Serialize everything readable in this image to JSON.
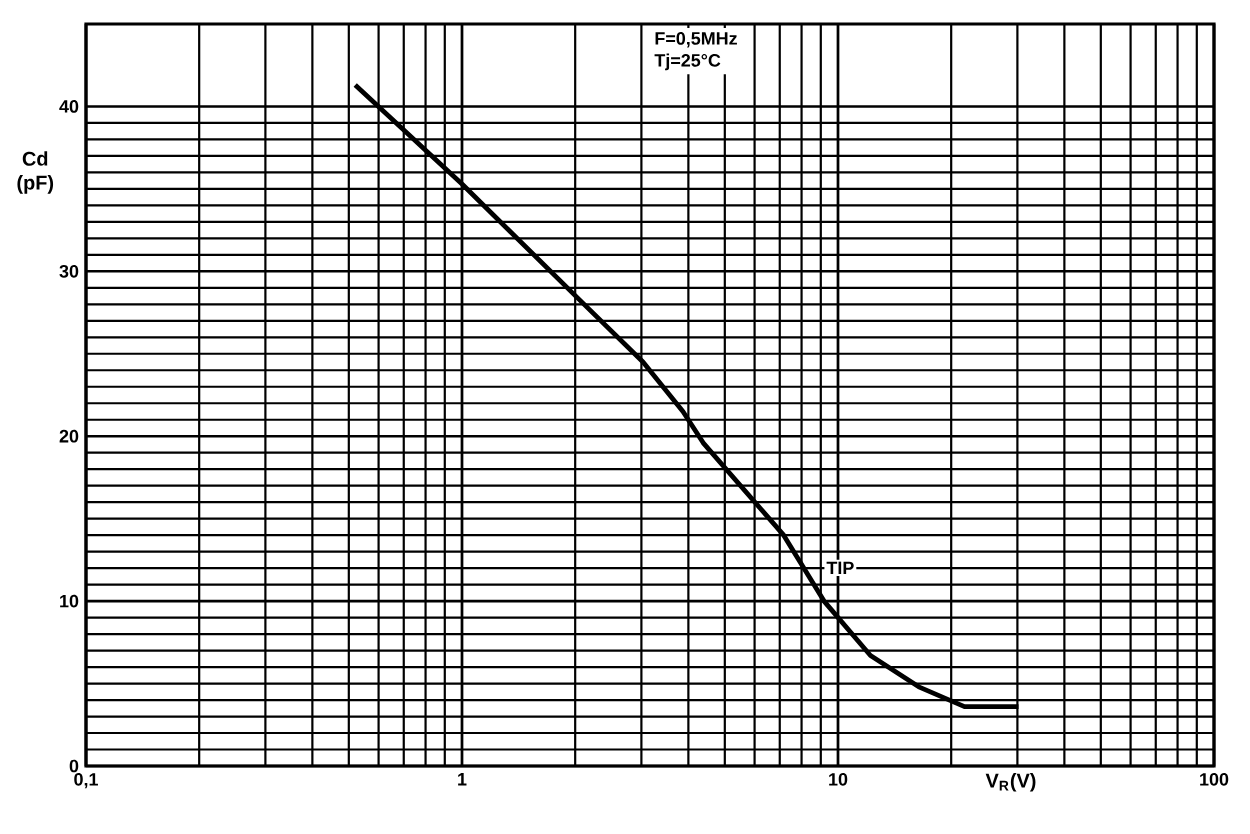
{
  "chart_data": {
    "type": "line",
    "xlabel": "V$_{R}$(V)",
    "ylabel": "Cd (pF)",
    "annotations": [
      "F=0,5MHz",
      "Tj=25°C"
    ],
    "log": "x",
    "grid": true,
    "legend": false,
    "marker": "none",
    "line_style": "solid",
    "xlim": [
      0.1,
      100
    ],
    "ylim": [
      0,
      45
    ],
    "xticks": [
      {
        "value": 0.1,
        "label": "0,1"
      },
      1,
      10,
      100
    ],
    "yticks": [
      0,
      10,
      20,
      30,
      40
    ],
    "series": [
      {
        "name": "TIP",
        "color": "#000000",
        "x": [
          0.52,
          1,
          2.09,
          3.03,
          3.87,
          4.38,
          7.17,
          9.18,
          12.2,
          16.4,
          21.7,
          30.2
        ],
        "values": [
          41.3,
          35.3,
          28.1,
          24.5,
          21.5,
          19.6,
          14.0,
          10.0,
          6.7,
          4.8,
          3.6,
          3.6
        ]
      }
    ]
  }
}
